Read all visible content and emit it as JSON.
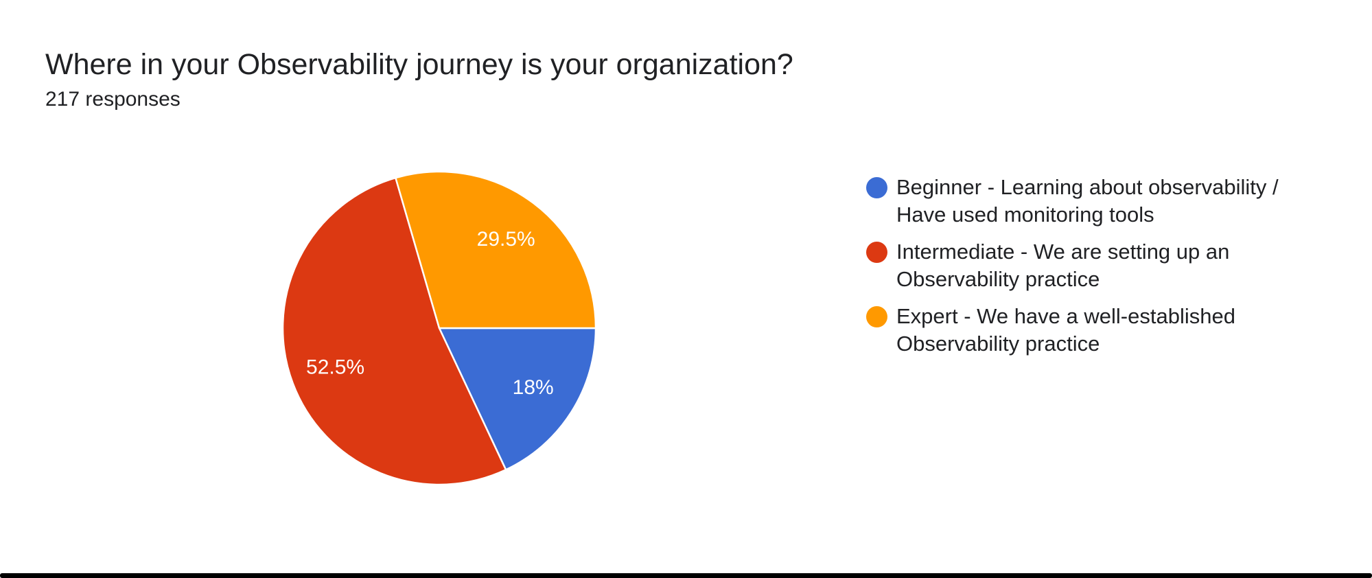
{
  "page": {
    "background_color": "#ffffff",
    "bottom_bar_color": "#000000",
    "text_color": "#202124"
  },
  "header": {
    "title": "Where in your Observability journey is your organization?",
    "responses": "217 responses"
  },
  "chart_data": {
    "type": "pie",
    "title": "Where in your Observability journey is your organization?",
    "subtitle": "217 responses",
    "total_responses": 217,
    "legend_position": "right",
    "start_angle_deg": 0,
    "direction": "clockwise",
    "slice_label_color": "#ffffff",
    "slice_border_color": "#ffffff",
    "slices": [
      {
        "label": "Beginner - Learning about observability / Have used monitoring tools",
        "value_pct": 18,
        "display": "18%",
        "color": "#3B6CD4"
      },
      {
        "label": "Intermediate - We are setting up an Observability practice",
        "value_pct": 52.5,
        "display": "52.5%",
        "color": "#DC3912"
      },
      {
        "label": "Expert - We have a well-established Observability practice",
        "value_pct": 29.5,
        "display": "29.5%",
        "color": "#FF9900"
      }
    ]
  }
}
